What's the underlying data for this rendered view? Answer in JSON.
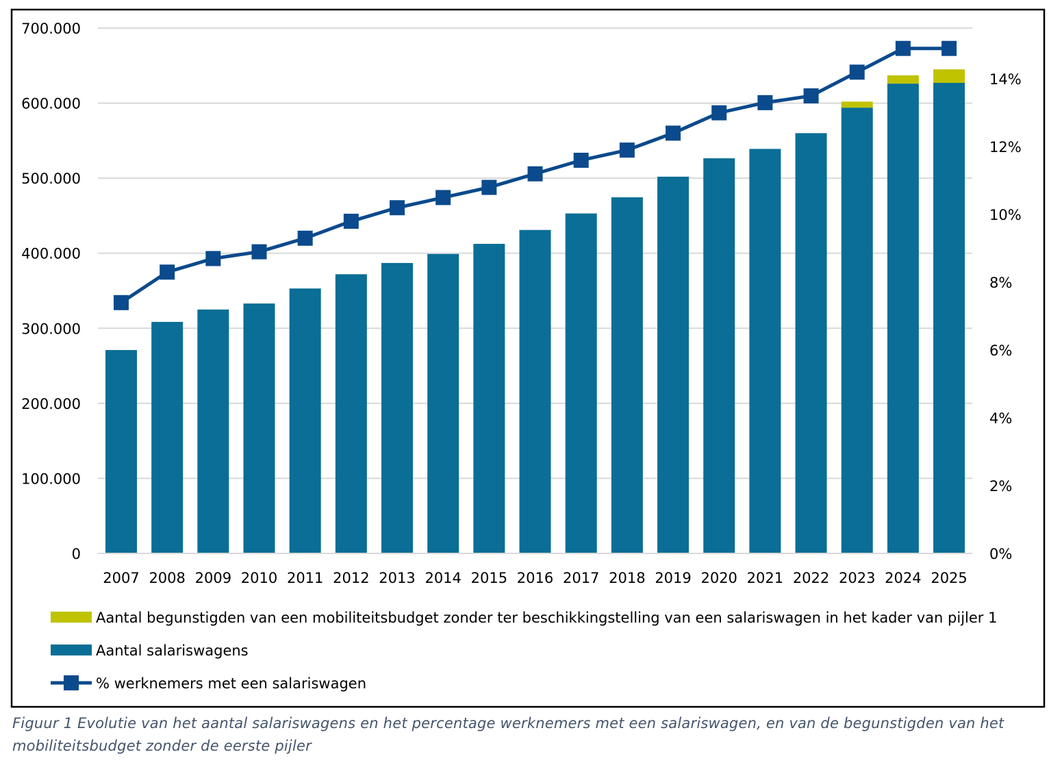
{
  "chart_data": {
    "type": "bar",
    "categories": [
      "2007",
      "2008",
      "2009",
      "2010",
      "2011",
      "2012",
      "2013",
      "2014",
      "2015",
      "2016",
      "2017",
      "2018",
      "2019",
      "2020",
      "2021",
      "2022",
      "2023",
      "2024",
      "2025"
    ],
    "series": [
      {
        "name": "Aantal salariswagens",
        "type": "bar",
        "axis": "left",
        "color": "#0a6e96",
        "values": [
          271000,
          308500,
          325000,
          333000,
          353000,
          372000,
          387000,
          399000,
          412500,
          431000,
          453000,
          474500,
          502000,
          526500,
          539000,
          560000,
          594000,
          626000,
          627000
        ]
      },
      {
        "name": "Aantal begunstigden van een mobiliteitsbudget zonder ter beschikkingstelling van een salariswagen in het kader van pijler 1",
        "type": "bar-stacked",
        "axis": "left",
        "color": "#bfc300",
        "values": [
          0,
          0,
          0,
          0,
          0,
          0,
          0,
          0,
          0,
          0,
          0,
          0,
          0,
          0,
          0,
          0,
          8000,
          11000,
          18000
        ]
      },
      {
        "name": "% werknemers met een salariswagen",
        "type": "line",
        "axis": "right",
        "color": "#0b4a8c",
        "values": [
          7.4,
          8.3,
          8.7,
          8.9,
          9.3,
          9.8,
          10.2,
          10.5,
          10.8,
          11.2,
          11.6,
          11.9,
          12.4,
          13.0,
          13.3,
          13.5,
          14.2,
          14.9,
          14.9
        ]
      }
    ],
    "yleft": {
      "ticks": [
        "0",
        "100.000",
        "200.000",
        "300.000",
        "400.000",
        "500.000",
        "600.000",
        "700.000"
      ],
      "range": [
        0,
        700000
      ]
    },
    "yright": {
      "ticks": [
        "0%",
        "2%",
        "4%",
        "6%",
        "8%",
        "10%",
        "12%",
        "14%"
      ],
      "range": [
        0,
        15.5
      ]
    },
    "grid": true,
    "legend_placement": "bottom"
  },
  "legend_order": [
    1,
    0,
    2
  ],
  "caption": {
    "line1": "Figuur 1 Evolutie van het aantal salariswagens en het percentage werknemers met een salariswagen, en van de begunstigden van het",
    "line2": "mobiliteitsbudget zonder de eerste pijler"
  }
}
